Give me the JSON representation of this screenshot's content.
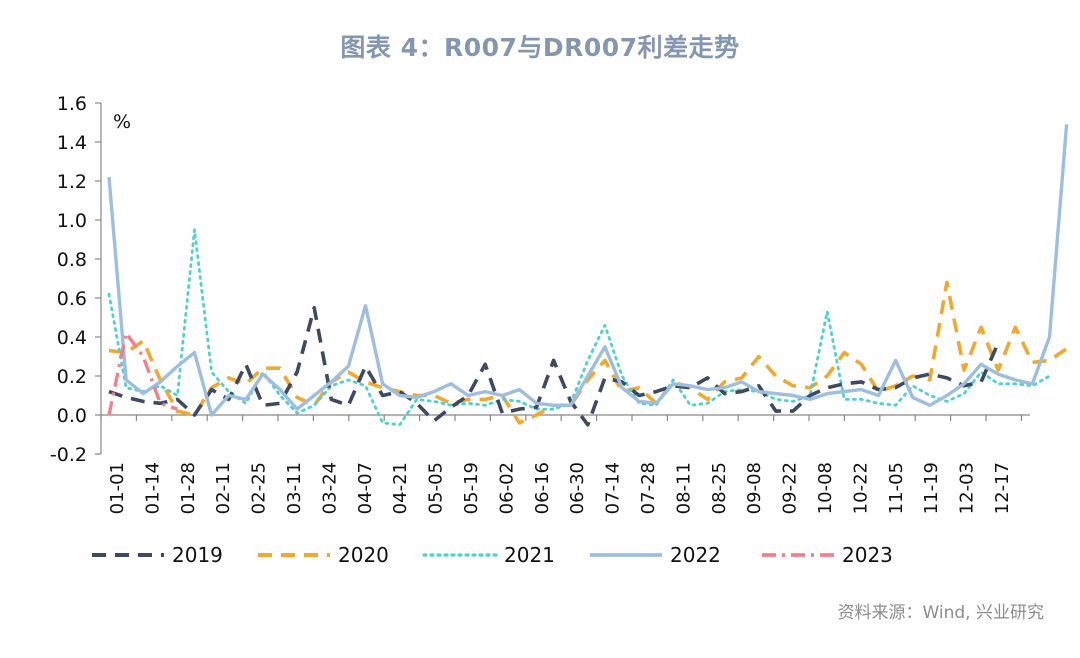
{
  "header": {
    "title": "图表 4：R007与DR007利差走势"
  },
  "footer": {
    "source": "资料来源：Wind, 兴业研究"
  },
  "chart_data": {
    "type": "line",
    "title": "图表 4：R007与DR007利差走势",
    "ylabel": "%",
    "xlabel": "",
    "ylim": [
      -0.2,
      1.6
    ],
    "yticks": [
      -0.2,
      0.0,
      0.2,
      0.4,
      0.6,
      0.8,
      1.0,
      1.2,
      1.4,
      1.6
    ],
    "ytick_labels": [
      "-0.2",
      "0.0",
      "0.2",
      "0.4",
      "0.6",
      "0.8",
      "1.0",
      "1.2",
      "1.4",
      "1.6"
    ],
    "x_tick_labels": [
      "01-01",
      "01-14",
      "01-28",
      "02-11",
      "02-25",
      "03-11",
      "03-24",
      "04-07",
      "04-21",
      "05-05",
      "05-19",
      "06-02",
      "06-16",
      "06-30",
      "07-14",
      "07-28",
      "08-11",
      "08-25",
      "09-08",
      "09-22",
      "10-08",
      "10-22",
      "11-05",
      "11-19",
      "12-03",
      "12-17"
    ],
    "grid": false,
    "legend_position": "bottom",
    "series": [
      {
        "name": "2019",
        "color": "#3d4a62",
        "style": "dash",
        "values": [
          0.12,
          0.09,
          0.07,
          0.06,
          0.08,
          0.0,
          0.13,
          0.08,
          0.26,
          0.05,
          0.06,
          0.22,
          0.55,
          0.08,
          0.05,
          0.25,
          0.1,
          0.12,
          0.06,
          -0.03,
          0.04,
          0.1,
          0.26,
          0.01,
          0.03,
          0.04,
          0.28,
          0.07,
          -0.05,
          0.19,
          0.17,
          0.1,
          0.12,
          0.15,
          0.14,
          0.19,
          0.11,
          0.12,
          0.15,
          0.02,
          0.02,
          0.1,
          0.14,
          0.16,
          0.17,
          0.13,
          0.14,
          0.19,
          0.21,
          0.19,
          0.15,
          0.17,
          0.37
        ]
      },
      {
        "name": "2020",
        "color": "#f0a830",
        "style": "dash",
        "values": [
          0.33,
          0.32,
          0.38,
          0.18,
          0.02,
          0.0,
          0.14,
          0.19,
          0.16,
          0.24,
          0.24,
          0.09,
          0.05,
          0.17,
          0.22,
          0.17,
          0.14,
          0.12,
          0.1,
          0.1,
          0.06,
          0.08,
          0.08,
          0.1,
          -0.04,
          0.0,
          0.05,
          0.05,
          0.18,
          0.28,
          0.12,
          0.14,
          0.06,
          0.17,
          0.14,
          0.08,
          0.17,
          0.19,
          0.3,
          0.2,
          0.15,
          0.14,
          0.2,
          0.32,
          0.26,
          0.12,
          0.15,
          0.2,
          0.18,
          0.68,
          0.23,
          0.45,
          0.23,
          0.45,
          0.27,
          0.28,
          0.34
        ]
      },
      {
        "name": "2021",
        "color": "#4fd0d3",
        "style": "dot",
        "values": [
          0.62,
          0.14,
          0.12,
          0.15,
          0.1,
          0.95,
          0.22,
          0.12,
          0.06,
          0.22,
          0.1,
          0.01,
          0.05,
          0.15,
          0.18,
          0.15,
          -0.04,
          -0.05,
          0.08,
          0.07,
          0.05,
          0.06,
          0.05,
          0.08,
          0.07,
          0.03,
          0.03,
          0.06,
          0.28,
          0.46,
          0.2,
          0.06,
          0.05,
          0.18,
          0.05,
          0.06,
          0.12,
          0.13,
          0.12,
          0.08,
          0.07,
          0.1,
          0.53,
          0.08,
          0.08,
          0.06,
          0.05,
          0.15,
          0.1,
          0.07,
          0.11,
          0.22,
          0.16,
          0.16,
          0.15,
          0.2
        ]
      },
      {
        "name": "2022",
        "color": "#9dbedf",
        "style": "solid",
        "values": [
          1.22,
          0.18,
          0.11,
          0.17,
          0.25,
          0.32,
          0.0,
          0.1,
          0.08,
          0.21,
          0.13,
          0.03,
          0.1,
          0.17,
          0.25,
          0.56,
          0.16,
          0.1,
          0.09,
          0.12,
          0.16,
          0.1,
          0.12,
          0.1,
          0.13,
          0.06,
          0.05,
          0.05,
          0.2,
          0.35,
          0.14,
          0.07,
          0.06,
          0.16,
          0.15,
          0.13,
          0.14,
          0.17,
          0.12,
          0.11,
          0.1,
          0.08,
          0.11,
          0.12,
          0.13,
          0.1,
          0.28,
          0.09,
          0.05,
          0.1,
          0.16,
          0.26,
          0.21,
          0.18,
          0.16,
          0.4,
          1.49
        ]
      },
      {
        "name": "2023",
        "color": "#f08090",
        "style": "dashdot",
        "values": [
          0.0,
          0.42,
          0.3,
          0.06,
          0.03
        ]
      }
    ]
  }
}
